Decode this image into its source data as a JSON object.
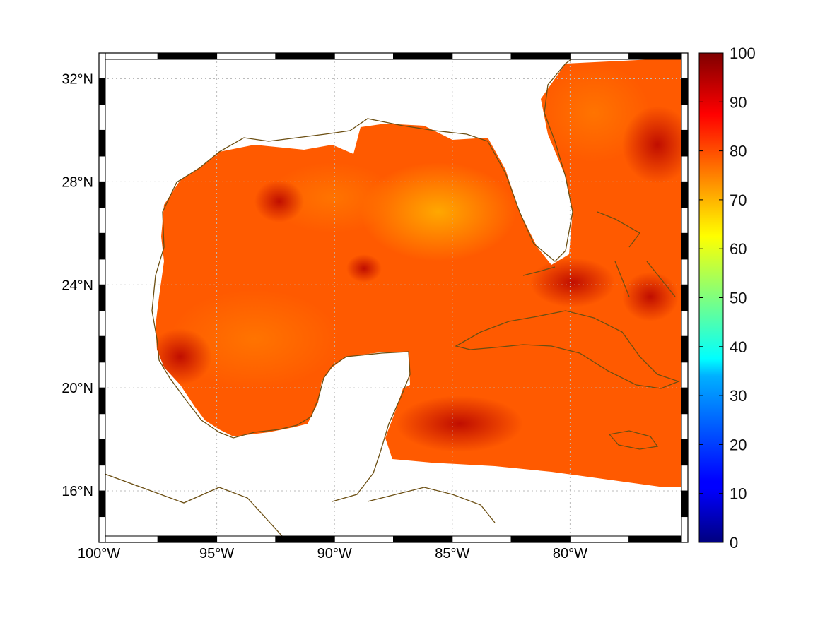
{
  "chart_data": {
    "type": "heatmap",
    "map_projection": "equirectangular",
    "lon_range": [
      -100,
      -75
    ],
    "lat_range": [
      14,
      33
    ],
    "x_ticks": [
      {
        "value": -100,
        "label": "100°W"
      },
      {
        "value": -95,
        "label": "95°W"
      },
      {
        "value": -90,
        "label": "90°W"
      },
      {
        "value": -85,
        "label": "85°W"
      },
      {
        "value": -80,
        "label": "80°W"
      }
    ],
    "y_ticks": [
      {
        "value": 32,
        "label": "32°N"
      },
      {
        "value": 28,
        "label": "28°N"
      },
      {
        "value": 24,
        "label": "24°N"
      },
      {
        "value": 20,
        "label": "20°N"
      },
      {
        "value": 16,
        "label": "16°N"
      }
    ],
    "grid": true,
    "colorbar": {
      "range": [
        0,
        100
      ],
      "ticks": [
        {
          "value": 100,
          "label": "100"
        },
        {
          "value": 90,
          "label": "90"
        },
        {
          "value": 80,
          "label": "80"
        },
        {
          "value": 70,
          "label": "70"
        },
        {
          "value": 60,
          "label": "60"
        },
        {
          "value": 50,
          "label": "50"
        },
        {
          "value": 40,
          "label": "40"
        },
        {
          "value": 30,
          "label": "30"
        },
        {
          "value": 20,
          "label": "20"
        },
        {
          "value": 10,
          "label": "10"
        },
        {
          "value": 0,
          "label": "0"
        }
      ],
      "colormap": "jet",
      "placement": "right"
    },
    "colors": {
      "coastline": "#6b4e12",
      "grid": "#bbbbbb",
      "frame": "#000000"
    },
    "field_summary": {
      "typical_value": 82,
      "min_visible": 68,
      "max_visible": 97
    }
  }
}
